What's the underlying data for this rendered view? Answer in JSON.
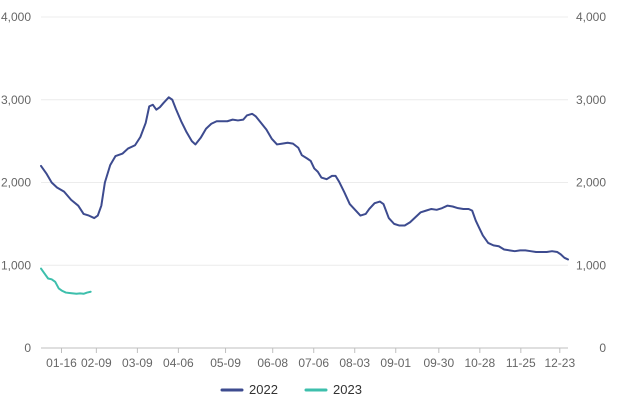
{
  "chart_data": {
    "type": "line",
    "title": "",
    "xlabel": "",
    "ylabel": "",
    "ylim": [
      0,
      4000
    ],
    "y_ticks": [
      0,
      1000,
      2000,
      3000,
      4000
    ],
    "y_tick_labels": [
      "0",
      "1,000",
      "2,000",
      "3,000",
      "4,000"
    ],
    "x_tick_labels": [
      "01-16",
      "02-09",
      "03-09",
      "04-06",
      "05-09",
      "06-08",
      "07-06",
      "08-03",
      "09-01",
      "09-30",
      "10-28",
      "11-25",
      "12-23"
    ],
    "x_tick_index": [
      10,
      27,
      47,
      67,
      90,
      113,
      133,
      153,
      173,
      194,
      214,
      234,
      253
    ],
    "x_count": 258,
    "grid": true,
    "dual_y_axis": true,
    "legend_position": "bottom",
    "series": [
      {
        "name": "2022",
        "color": "#3d4b8f",
        "points": [
          [
            0,
            2200
          ],
          [
            3,
            2110
          ],
          [
            6,
            2000
          ],
          [
            9,
            1940
          ],
          [
            13,
            1890
          ],
          [
            17,
            1790
          ],
          [
            21,
            1720
          ],
          [
            24,
            1620
          ],
          [
            27,
            1600
          ],
          [
            30,
            1570
          ],
          [
            32,
            1600
          ],
          [
            34,
            1720
          ],
          [
            36,
            2000
          ],
          [
            39,
            2210
          ],
          [
            42,
            2320
          ],
          [
            46,
            2350
          ],
          [
            49,
            2410
          ],
          [
            53,
            2450
          ],
          [
            56,
            2550
          ],
          [
            59,
            2720
          ],
          [
            61,
            2920
          ],
          [
            63,
            2940
          ],
          [
            65,
            2880
          ],
          [
            67,
            2910
          ],
          [
            69,
            2960
          ],
          [
            72,
            3030
          ],
          [
            74,
            3000
          ],
          [
            76,
            2890
          ],
          [
            79,
            2740
          ],
          [
            82,
            2610
          ],
          [
            85,
            2500
          ],
          [
            87,
            2460
          ],
          [
            90,
            2540
          ],
          [
            93,
            2650
          ],
          [
            96,
            2710
          ],
          [
            99,
            2740
          ],
          [
            102,
            2740
          ],
          [
            105,
            2740
          ],
          [
            108,
            2760
          ],
          [
            111,
            2750
          ],
          [
            114,
            2760
          ],
          [
            116,
            2810
          ],
          [
            119,
            2830
          ],
          [
            121,
            2800
          ],
          [
            124,
            2720
          ],
          [
            127,
            2640
          ],
          [
            130,
            2530
          ],
          [
            133,
            2460
          ],
          [
            136,
            2470
          ],
          [
            139,
            2480
          ],
          [
            142,
            2470
          ],
          [
            145,
            2420
          ],
          [
            147,
            2330
          ],
          [
            150,
            2290
          ],
          [
            152,
            2260
          ],
          [
            154,
            2170
          ],
          [
            156,
            2130
          ],
          [
            158,
            2060
          ],
          [
            161,
            2040
          ],
          [
            164,
            2080
          ],
          [
            166,
            2080
          ],
          [
            168,
            2010
          ],
          [
            171,
            1880
          ],
          [
            174,
            1740
          ],
          [
            177,
            1670
          ],
          [
            180,
            1600
          ],
          [
            183,
            1620
          ],
          [
            185,
            1680
          ],
          [
            188,
            1750
          ],
          [
            191,
            1770
          ],
          [
            193,
            1740
          ],
          [
            196,
            1570
          ],
          [
            199,
            1500
          ],
          [
            202,
            1480
          ],
          [
            205,
            1480
          ],
          [
            208,
            1520
          ],
          [
            211,
            1580
          ],
          [
            214,
            1640
          ],
          [
            217,
            1660
          ],
          [
            220,
            1680
          ],
          [
            223,
            1670
          ],
          [
            226,
            1690
          ],
          [
            229,
            1720
          ],
          [
            232,
            1710
          ],
          [
            235,
            1690
          ],
          [
            238,
            1680
          ],
          [
            241,
            1680
          ],
          [
            243,
            1660
          ],
          [
            245,
            1540
          ],
          [
            247,
            1450
          ],
          [
            249,
            1360
          ],
          [
            252,
            1270
          ],
          [
            255,
            1240
          ],
          [
            258,
            1230
          ],
          [
            261,
            1190
          ],
          [
            264,
            1180
          ],
          [
            267,
            1170
          ],
          [
            270,
            1180
          ],
          [
            273,
            1180
          ],
          [
            276,
            1170
          ],
          [
            279,
            1160
          ],
          [
            282,
            1160
          ],
          [
            285,
            1160
          ],
          [
            288,
            1170
          ],
          [
            291,
            1160
          ],
          [
            293,
            1130
          ],
          [
            295,
            1090
          ],
          [
            297,
            1070
          ]
        ]
      },
      {
        "name": "2023",
        "color": "#3dbfac",
        "points": [
          [
            0,
            960
          ],
          [
            2,
            900
          ],
          [
            4,
            840
          ],
          [
            6,
            830
          ],
          [
            8,
            800
          ],
          [
            10,
            720
          ],
          [
            12,
            690
          ],
          [
            14,
            670
          ],
          [
            16,
            665
          ],
          [
            18,
            660
          ],
          [
            20,
            655
          ],
          [
            22,
            660
          ],
          [
            24,
            655
          ],
          [
            26,
            670
          ],
          [
            28,
            680
          ]
        ]
      }
    ]
  }
}
